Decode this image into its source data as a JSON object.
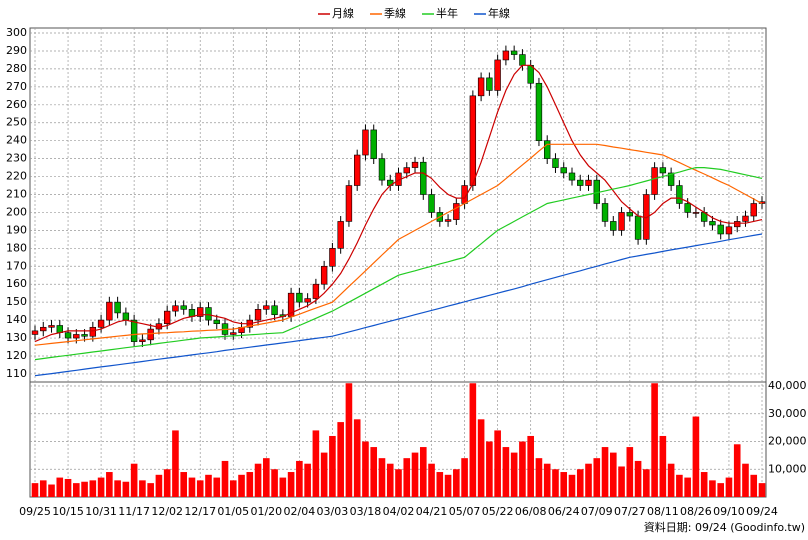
{
  "chart_data": [
    {
      "type": "candlestick",
      "legend": "top",
      "up_color": "#ff0000",
      "down_color": "#00b000",
      "grid": true,
      "ylim": [
        105.5,
        302.8
      ],
      "yticks": [
        110,
        120,
        130,
        140,
        150,
        160,
        170,
        180,
        190,
        200,
        210,
        220,
        230,
        240,
        250,
        260,
        270,
        280,
        290,
        300
      ],
      "open": [
        132,
        134,
        136,
        137,
        133,
        130,
        132,
        131,
        136,
        140,
        150,
        144,
        140,
        128,
        129,
        135,
        138,
        145,
        148,
        146,
        142,
        147,
        140,
        138,
        132,
        133,
        136,
        140,
        146,
        148,
        143,
        142,
        155,
        150,
        152,
        160,
        170,
        180,
        195,
        215,
        232,
        246,
        230,
        218,
        215,
        222,
        225,
        228,
        210,
        200,
        195,
        196,
        205,
        215,
        265,
        275,
        268,
        285,
        290,
        288,
        282,
        272,
        240,
        230,
        225,
        222,
        218,
        215,
        218,
        205,
        195,
        190,
        200,
        198,
        185,
        210,
        225,
        222,
        215,
        205,
        200,
        200,
        195,
        193,
        188,
        192,
        195,
        198,
        205
      ],
      "high": [
        137,
        139,
        140,
        140,
        136,
        135,
        135,
        139,
        143,
        153,
        153,
        147,
        143,
        132,
        138,
        141,
        148,
        151,
        151,
        149,
        150,
        150,
        143,
        141,
        136,
        139,
        143,
        149,
        151,
        151,
        146,
        158,
        158,
        155,
        163,
        173,
        183,
        198,
        218,
        235,
        249,
        249,
        233,
        221,
        225,
        228,
        231,
        231,
        213,
        203,
        199,
        208,
        218,
        268,
        278,
        278,
        288,
        293,
        293,
        291,
        285,
        275,
        243,
        233,
        228,
        225,
        221,
        221,
        221,
        208,
        198,
        203,
        203,
        201,
        213,
        228,
        228,
        225,
        218,
        208,
        203,
        203,
        198,
        196,
        195,
        198,
        201,
        208,
        209
      ],
      "low": [
        129,
        131,
        133,
        130,
        127,
        127,
        128,
        128,
        133,
        137,
        141,
        137,
        125,
        125,
        126,
        132,
        135,
        142,
        143,
        139,
        139,
        137,
        135,
        129,
        129,
        130,
        133,
        137,
        143,
        140,
        139,
        139,
        147,
        147,
        149,
        157,
        167,
        177,
        192,
        212,
        229,
        227,
        215,
        212,
        212,
        219,
        222,
        207,
        197,
        192,
        192,
        193,
        202,
        212,
        262,
        265,
        265,
        282,
        285,
        279,
        269,
        237,
        227,
        222,
        219,
        215,
        212,
        212,
        202,
        192,
        187,
        187,
        195,
        182,
        182,
        207,
        219,
        212,
        202,
        197,
        197,
        192,
        190,
        185,
        185,
        189,
        192,
        195,
        202
      ],
      "close": [
        134,
        136,
        137,
        133,
        130,
        132,
        131,
        136,
        140,
        150,
        144,
        140,
        128,
        129,
        135,
        138,
        145,
        148,
        146,
        142,
        147,
        140,
        138,
        132,
        133,
        136,
        140,
        146,
        148,
        143,
        142,
        155,
        150,
        152,
        160,
        170,
        180,
        195,
        215,
        232,
        246,
        230,
        218,
        215,
        222,
        225,
        228,
        210,
        200,
        195,
        196,
        205,
        215,
        265,
        275,
        268,
        285,
        290,
        288,
        282,
        272,
        240,
        230,
        225,
        222,
        218,
        215,
        218,
        205,
        195,
        190,
        200,
        198,
        185,
        210,
        225,
        222,
        215,
        205,
        200,
        200,
        195,
        193,
        188,
        192,
        195,
        198,
        205,
        206
      ],
      "series": [
        {
          "name": "月線",
          "color": "#cc0000",
          "values": [
            128,
            130,
            132,
            133,
            134,
            134,
            134,
            134,
            135,
            137,
            139,
            140,
            139,
            138,
            137,
            136,
            137,
            139,
            141,
            142,
            143,
            143,
            142,
            141,
            139,
            138,
            138,
            139,
            140,
            141,
            142,
            144,
            146,
            148,
            151,
            155,
            160,
            166,
            174,
            183,
            193,
            202,
            210,
            215,
            218,
            220,
            222,
            222,
            219,
            214,
            210,
            208,
            208,
            216,
            228,
            242,
            256,
            268,
            277,
            282,
            282,
            278,
            270,
            260,
            250,
            240,
            232,
            226,
            222,
            218,
            212,
            206,
            202,
            198,
            197,
            200,
            205,
            208,
            208,
            206,
            203,
            200,
            197,
            195,
            194,
            194,
            194,
            195,
            196
          ]
        },
        {
          "name": "季線",
          "color": "#ff6600",
          "values": [
            126,
            126.5,
            127,
            127.5,
            128,
            128.5,
            129,
            129.5,
            130,
            130.5,
            131,
            131.5,
            132,
            132.3,
            132.5,
            132.8,
            133,
            133.3,
            133.5,
            133.8,
            134,
            134.3,
            134.5,
            134.8,
            135,
            135.8,
            136.7,
            137.5,
            138.3,
            139.2,
            140,
            141.7,
            143.3,
            145,
            146.7,
            148.3,
            150,
            154.4,
            158.8,
            163.1,
            167.5,
            171.9,
            176.3,
            180.6,
            185,
            187.5,
            190,
            192.5,
            195,
            197.5,
            200,
            202.5,
            205,
            207.5,
            210,
            212.5,
            215,
            218.8,
            222.7,
            226.5,
            230.3,
            234.2,
            238,
            238,
            238,
            238,
            238,
            238,
            238,
            237.3,
            236.5,
            235.8,
            235,
            234.3,
            233.5,
            232.8,
            232,
            229.9,
            227.8,
            225.6,
            223.5,
            221.4,
            219.3,
            217.1,
            215,
            212.5,
            210,
            207.5,
            205
          ]
        },
        {
          "name": "半年",
          "color": "#22cc22",
          "values": [
            118,
            118.6,
            119.2,
            119.8,
            120.4,
            121,
            121.6,
            122.2,
            122.8,
            123.4,
            124,
            124.6,
            125.2,
            125.8,
            126.4,
            127,
            127.6,
            128.2,
            128.8,
            129.4,
            130,
            130.3,
            130.6,
            130.9,
            131.2,
            131.5,
            131.8,
            132.1,
            132.4,
            132.7,
            133,
            135,
            137,
            139,
            141,
            143,
            145,
            147.5,
            150,
            152.5,
            155,
            157.5,
            160,
            162.5,
            165,
            166.3,
            167.5,
            168.8,
            170,
            171.3,
            172.5,
            173.8,
            175,
            178.8,
            182.5,
            186.3,
            190,
            192.5,
            195,
            197.5,
            200,
            202.5,
            205,
            206,
            207,
            208,
            209,
            210,
            211,
            212,
            213,
            214,
            215,
            216.3,
            217.5,
            218.8,
            220,
            221.3,
            222.5,
            223.8,
            225,
            225,
            224.5,
            224,
            223,
            222,
            221,
            220,
            219
          ]
        },
        {
          "name": "年線",
          "color": "#1155cc",
          "values": [
            109,
            109.6,
            110.2,
            110.8,
            111.4,
            112,
            112.7,
            113.3,
            113.9,
            114.5,
            115.1,
            115.7,
            116.3,
            116.9,
            117.6,
            118.2,
            118.8,
            119.4,
            120,
            120.6,
            121.2,
            121.8,
            122.4,
            123.1,
            123.7,
            124.3,
            124.9,
            125.5,
            126.1,
            126.7,
            127.3,
            127.9,
            128.6,
            129.2,
            129.8,
            130.4,
            131,
            132.2,
            133.4,
            134.6,
            135.8,
            137,
            138.2,
            139.4,
            140.6,
            141.8,
            143,
            144.2,
            145.4,
            146.6,
            147.8,
            149,
            150.2,
            151.4,
            152.6,
            153.8,
            155,
            156.2,
            157.4,
            158.6,
            160,
            161.3,
            162.5,
            163.8,
            165,
            166.3,
            167.5,
            168.8,
            170,
            171.3,
            172.5,
            173.8,
            175,
            175.8,
            176.6,
            177.4,
            178.3,
            179.1,
            179.9,
            180.7,
            181.5,
            182.3,
            183.1,
            183.9,
            184.8,
            185.6,
            186.4,
            187.2,
            188
          ]
        }
      ]
    },
    {
      "type": "bar",
      "color": "#ff0000",
      "grid": true,
      "source": "資料日期: 09/24 (Goodinfo.tw)",
      "categories": [
        "09/25",
        null,
        null,
        null,
        "10/15",
        null,
        null,
        null,
        "10/31",
        null,
        null,
        null,
        "11/17",
        null,
        null,
        null,
        "12/02",
        null,
        null,
        null,
        "12/17",
        null,
        null,
        null,
        "01/05",
        null,
        null,
        null,
        "01/20",
        null,
        null,
        null,
        "02/04",
        null,
        null,
        null,
        "03/03",
        null,
        null,
        null,
        "03/18",
        null,
        null,
        null,
        "04/02",
        null,
        null,
        null,
        "04/21",
        null,
        null,
        null,
        "05/07",
        null,
        null,
        null,
        "05/22",
        null,
        null,
        null,
        "06/08",
        null,
        null,
        null,
        "06/24",
        null,
        null,
        null,
        "07/09",
        null,
        null,
        null,
        "07/27",
        null,
        null,
        null,
        "08/11",
        null,
        null,
        null,
        "08/26",
        null,
        null,
        null,
        "09/10",
        null,
        null,
        null,
        "09/24"
      ],
      "ylim": [
        0,
        41450
      ],
      "yticks": [
        {
          "value": 10000,
          "label": "10,000"
        },
        {
          "value": 20000,
          "label": "20,000"
        },
        {
          "value": 30000,
          "label": "30,000"
        },
        {
          "value": 40000,
          "label": "40,000"
        }
      ],
      "values": [
        5000,
        6000,
        4500,
        7000,
        6500,
        5000,
        5500,
        6000,
        7000,
        9000,
        6000,
        5500,
        12000,
        6000,
        5000,
        8000,
        10000,
        24000,
        9000,
        7000,
        6000,
        8000,
        7000,
        13000,
        6000,
        8000,
        9000,
        12000,
        14000,
        10000,
        7000,
        9000,
        13000,
        12000,
        24000,
        16000,
        22000,
        27000,
        41000,
        28000,
        20000,
        18000,
        14000,
        12000,
        10000,
        14000,
        16000,
        18000,
        12000,
        9000,
        8000,
        10000,
        14000,
        41000,
        28000,
        20000,
        24000,
        18000,
        16000,
        20000,
        22000,
        14000,
        12000,
        10000,
        9000,
        8000,
        10000,
        12000,
        14000,
        18000,
        16000,
        11000,
        18000,
        13000,
        10000,
        41000,
        22000,
        12000,
        8000,
        7000,
        29000,
        9000,
        6000,
        5000,
        7000,
        19000,
        12000,
        8000,
        5000
      ]
    }
  ]
}
